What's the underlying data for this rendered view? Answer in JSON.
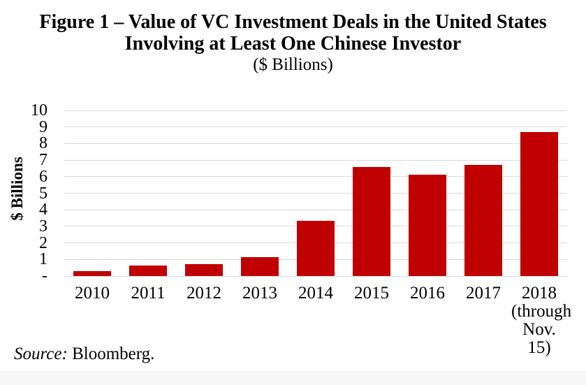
{
  "title": {
    "line1": "Figure 1 – Value of VC Investment Deals in the United States",
    "line2": "Involving at Least One Chinese Investor",
    "line3": "($ Billions)"
  },
  "chart_data": {
    "type": "bar",
    "title": "Figure 1 – Value of VC Investment Deals in the United States Involving at Least One Chinese Investor",
    "subtitle": "($ Billions)",
    "categories": [
      "2010",
      "2011",
      "2012",
      "2013",
      "2014",
      "2015",
      "2016",
      "2017",
      "2018 (through Nov. 15)"
    ],
    "category_display_lines": [
      [
        "2010"
      ],
      [
        "2011"
      ],
      [
        "2012"
      ],
      [
        "2013"
      ],
      [
        "2014"
      ],
      [
        "2015"
      ],
      [
        "2016"
      ],
      [
        "2017"
      ],
      [
        "2018",
        "(through",
        "Nov. 15)"
      ]
    ],
    "values": [
      0.3,
      0.65,
      0.7,
      1.15,
      3.35,
      6.6,
      6.1,
      6.7,
      8.7
    ],
    "xlabel": "",
    "ylabel": "$ Billions",
    "ylim": [
      0,
      10
    ],
    "ytick_values": [
      0,
      1,
      2,
      3,
      4,
      5,
      6,
      7,
      8,
      9,
      10
    ],
    "ytick_labels": [
      "-",
      "1",
      "2",
      "3",
      "4",
      "5",
      "6",
      "7",
      "8",
      "9",
      "10"
    ],
    "grid": true,
    "legend": false,
    "bar_color": "#c00000",
    "gridline_color": "#d9d9d9"
  },
  "source": {
    "label": "Source:",
    "text": " Bloomberg."
  }
}
